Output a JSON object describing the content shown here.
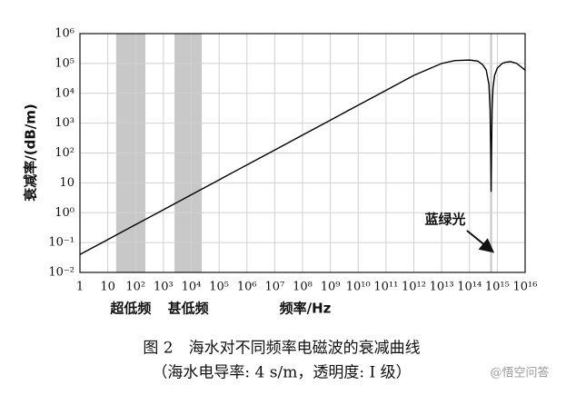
{
  "chart_data": {
    "type": "line",
    "y_label": "衰减率/(dB/m)",
    "x_label": "频率/Hz",
    "caption": "图 2　海水对不同频率电磁波的衰减曲线",
    "subcaption": "（海水电导率: 4 s/m，透明度: I 级）",
    "watermark": "@悟空问答",
    "annotation": "蓝绿光",
    "x_log": true,
    "y_log": true,
    "grid": true,
    "color": "#000000",
    "band_color": "#c8c8c8",
    "bands": [
      {
        "label": "超低频",
        "range": [
          20,
          225
        ]
      },
      {
        "label": "甚低频",
        "range": [
          2500,
          24000
        ]
      },
      {
        "range": [
          550000000000000,
          650000000000000
        ]
      }
    ],
    "x": [
      1,
      10,
      100,
      1000,
      10000,
      100000,
      1000000,
      10000000,
      100000000,
      1000000000,
      10000000000,
      100000000000,
      1000000000000,
      10000000000000,
      30000000000000,
      100000000000000,
      200000000000000,
      300000000000000,
      400000000000000,
      500000000000000,
      550000000000000,
      580000000000000,
      600000000000000,
      620000000000000,
      650000000000000,
      700000000000000,
      800000000000000,
      1000000000000000,
      1500000000000000,
      2000000000000000,
      3000000000000000,
      5000000000000000,
      10000000000000000
    ],
    "values": [
      0.04,
      0.126,
      0.4,
      1.26,
      4,
      12.6,
      40,
      126,
      400,
      1260,
      4000,
      12600,
      40000,
      100000,
      125000,
      130000,
      120000,
      90000,
      60000,
      20000,
      3000,
      100,
      5,
      100,
      3000,
      15000,
      40000,
      70000,
      100000,
      110000,
      115000,
      100000,
      60000
    ],
    "xlim": [
      1,
      10000000000000000
    ],
    "ylim": [
      0.01,
      1000000
    ],
    "xticks": [
      1,
      10,
      {
        "value": 100,
        "label": "10²"
      },
      {
        "value": 1000,
        "label": "10³"
      },
      {
        "value": 10000,
        "label": "10⁴"
      },
      {
        "value": 100000,
        "label": "10⁵"
      },
      {
        "value": 1000000,
        "label": "10⁶"
      },
      {
        "value": 10000000,
        "label": "10⁷"
      },
      {
        "value": 100000000,
        "label": "10⁸"
      },
      {
        "value": 1000000000,
        "label": "10⁹"
      },
      {
        "value": 10000000000,
        "label": "10¹⁰"
      },
      {
        "value": 100000000000,
        "label": "10¹¹"
      },
      {
        "value": 1000000000000,
        "label": "10¹²"
      },
      {
        "value": 10000000000000,
        "label": "10¹³"
      },
      {
        "value": 100000000000000,
        "label": "10¹⁴"
      },
      {
        "value": 1000000000000000,
        "label": "10¹⁵"
      },
      {
        "value": 10000000000000000,
        "label": "10¹⁶"
      }
    ],
    "yticks": [
      {
        "value": 0.01,
        "label": "10⁻²"
      },
      {
        "value": 0.1,
        "label": "10⁻¹"
      },
      {
        "value": 1,
        "label": "10⁰"
      },
      10,
      {
        "value": 100,
        "label": "10²"
      },
      {
        "value": 1000,
        "label": "10³"
      },
      {
        "value": 10000,
        "label": "10⁴"
      },
      {
        "value": 100000,
        "label": "10⁵"
      },
      {
        "value": 1000000,
        "label": "10⁶"
      }
    ]
  }
}
